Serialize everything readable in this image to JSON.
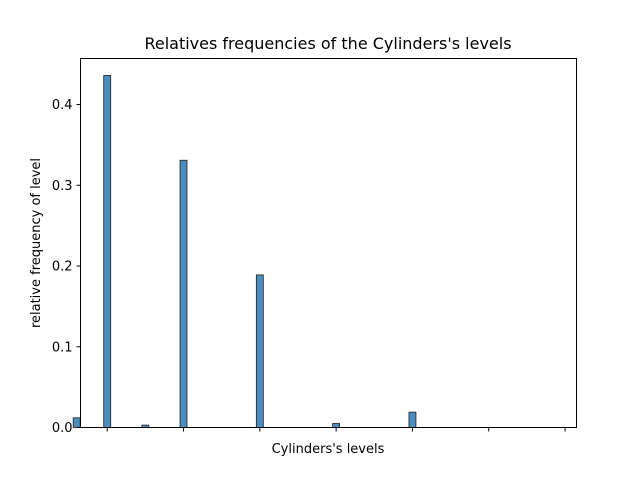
{
  "chart_data": {
    "type": "bar",
    "title": "Relatives frequencies of the Cylinders's levels",
    "xlabel": "Cylinders's levels",
    "ylabel": "relative frequency of level",
    "ylim": [
      0,
      0.457
    ],
    "xlim": [
      2.65,
      9.15
    ],
    "y_ticks": [
      "0.0",
      "0.1",
      "0.2",
      "0.3",
      "0.4"
    ],
    "x_tick_values": [
      3,
      4,
      5,
      6,
      7,
      8,
      9
    ],
    "x_tick_labels_shown": false,
    "grid": false,
    "bar_color": "#4b8dbd",
    "bar_edge_color": "#222222",
    "bars": [
      {
        "x": 2.6,
        "value": 0.012
      },
      {
        "x": 3.0,
        "value": 0.436
      },
      {
        "x": 3.5,
        "value": 0.003
      },
      {
        "x": 4.0,
        "value": 0.331
      },
      {
        "x": 5.0,
        "value": 0.189
      },
      {
        "x": 6.0,
        "value": 0.005
      },
      {
        "x": 7.0,
        "value": 0.019
      }
    ]
  }
}
